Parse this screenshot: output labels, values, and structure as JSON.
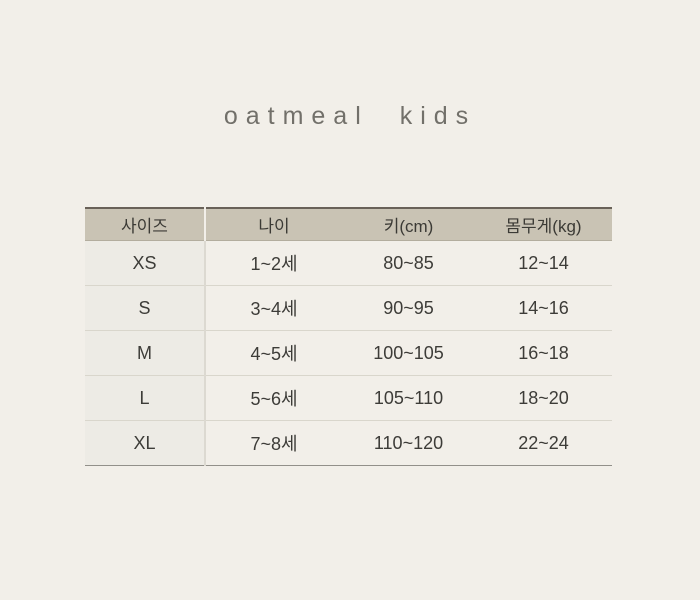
{
  "page": {
    "background": "#f2efe9"
  },
  "header": {
    "brand": "oatmeal kids"
  },
  "size_chart": {
    "columns": [
      "사이즈",
      "나이",
      "키(cm)",
      "몸무게(kg)"
    ],
    "rows": [
      {
        "size": "XS",
        "age": "1~2세",
        "height": "80~85",
        "weight": "12~14"
      },
      {
        "size": "S",
        "age": "3~4세",
        "height": "90~95",
        "weight": "14~16"
      },
      {
        "size": "M",
        "age": "4~5세",
        "height": "100~105",
        "weight": "16~18"
      },
      {
        "size": "L",
        "age": "5~6세",
        "height": "105~110",
        "weight": "18~20"
      },
      {
        "size": "XL",
        "age": "7~8세",
        "height": "110~120",
        "weight": "22~24"
      }
    ],
    "colors": {
      "page_bg": "#f2efe9",
      "header_bg": "#c9c3b4",
      "size_column_bg": "#edebe5",
      "text": "#3d3c38",
      "title_text": "#72706a",
      "top_border": "#696158",
      "bottom_border": "#92908a",
      "row_divider": "#d9d6cc"
    }
  },
  "chart_data": {
    "type": "table",
    "title": "oatmeal kids",
    "columns": [
      "사이즈",
      "나이",
      "키(cm)",
      "몸무게(kg)"
    ],
    "rows": [
      [
        "XS",
        "1~2세",
        "80~85",
        "12~14"
      ],
      [
        "S",
        "3~4세",
        "90~95",
        "14~16"
      ],
      [
        "M",
        "4~5세",
        "100~105",
        "16~18"
      ],
      [
        "L",
        "5~6세",
        "105~110",
        "18~20"
      ],
      [
        "XL",
        "7~8세",
        "110~120",
        "22~24"
      ]
    ],
    "layout_hints": {
      "header_fill": "#c9c3b4",
      "first_column_fill": "#edebe5",
      "grid": "horizontal-dividers",
      "title_position": "top-center"
    }
  }
}
